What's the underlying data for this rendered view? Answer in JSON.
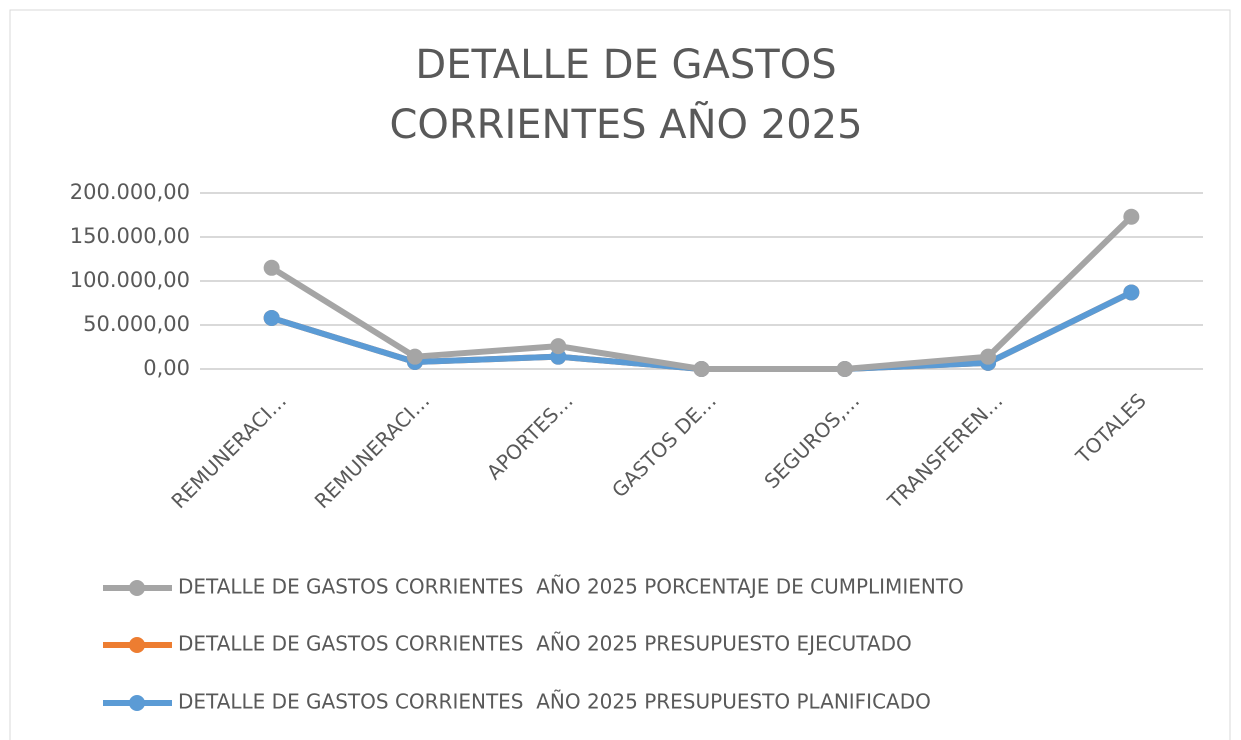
{
  "chart_data": {
    "type": "line",
    "title": [
      "DETALLE DE GASTOS",
      "CORRIENTES AÑO 2025"
    ],
    "categories": [
      "REMUNERACI…",
      "REMUNERACI…",
      "APORTES…",
      "GASTOS DE…",
      "SEGUROS,…",
      "TRANSFEREN…",
      "TOTALES"
    ],
    "series": [
      {
        "name": "DETALLE DE GASTOS CORRIENTES  AÑO 2025 PORCENTAJE DE CUMPLIMIENTO",
        "color": "#a5a5a5",
        "values": [
          115000,
          14000,
          26000,
          0,
          0,
          14000,
          173000
        ]
      },
      {
        "name": "DETALLE DE GASTOS CORRIENTES  AÑO 2025 PRESUPUESTO EJECUTADO",
        "color": "#ed7d31",
        "values": [
          58000,
          8000,
          14000,
          0,
          0,
          7000,
          87000
        ]
      },
      {
        "name": "DETALLE DE GASTOS CORRIENTES  AÑO 2025 PRESUPUESTO PLANIFICADO",
        "color": "#5b9bd5",
        "values": [
          58000,
          8000,
          14000,
          0,
          0,
          7000,
          87000
        ]
      }
    ],
    "ylim": [
      0,
      200000
    ],
    "yticks": [
      {
        "value": 0,
        "label": "0,00"
      },
      {
        "value": 50000,
        "label": "50.000,00"
      },
      {
        "value": 100000,
        "label": "100.000,00"
      },
      {
        "value": 150000,
        "label": "150.000,00"
      },
      {
        "value": 200000,
        "label": "200.000,00"
      }
    ],
    "grid": true,
    "legend": "bottom"
  }
}
